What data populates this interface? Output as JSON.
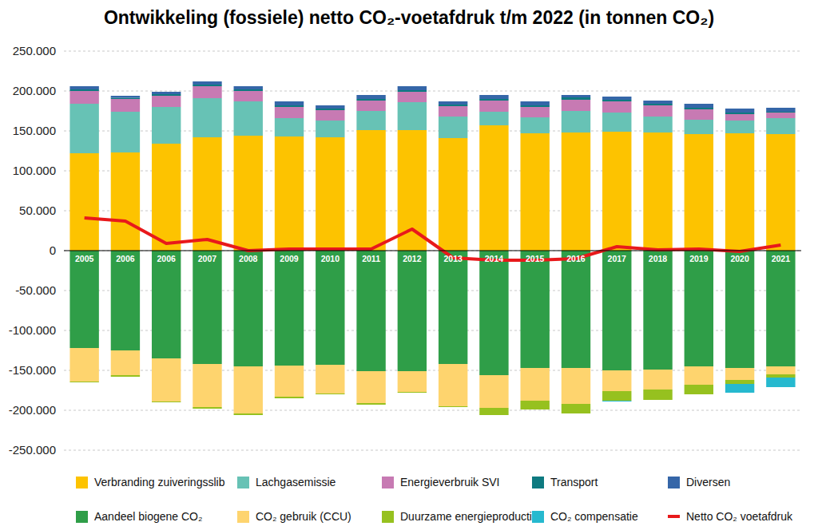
{
  "chart_data": {
    "type": "bar",
    "title": "Ontwikkeling (fossiele) netto CO₂-voetafdruk t/m 2022 (in tonnen CO₂)",
    "categories": [
      "2005",
      "2006",
      "2006",
      "2007",
      "2008",
      "2009",
      "2010",
      "2011",
      "2012",
      "2013",
      "2014",
      "2015",
      "2016",
      "2017",
      "2018",
      "2019",
      "2020",
      "2021"
    ],
    "stacked": true,
    "grid": true,
    "legend": "bottom",
    "ylim": [
      -250000,
      250000
    ],
    "yticks": [
      {
        "value": -250000,
        "label": "-250.000"
      },
      {
        "value": -200000,
        "label": "-200.000"
      },
      {
        "value": -150000,
        "label": "-150.000"
      },
      {
        "value": -100000,
        "label": "-100.000"
      },
      {
        "value": -50000,
        "label": "-50.000"
      },
      0,
      {
        "value": 50000,
        "label": "50.000"
      },
      {
        "value": 100000,
        "label": "100.000"
      },
      {
        "value": 150000,
        "label": "150.000"
      },
      {
        "value": 200000,
        "label": "200.000"
      },
      {
        "value": 250000,
        "label": "250.000"
      }
    ],
    "series": [
      {
        "name": "Verbranding zuiveringsslib",
        "color": "#fdc300",
        "values": [
          122000,
          123000,
          134000,
          142000,
          144000,
          143000,
          142000,
          151000,
          151000,
          141000,
          157000,
          147000,
          148000,
          149000,
          148000,
          146000,
          147000,
          146000
        ]
      },
      {
        "name": "Lachgasemissie",
        "color": "#67c2b5",
        "values": [
          62000,
          51000,
          46000,
          49000,
          43000,
          23000,
          21000,
          24000,
          35000,
          27000,
          17000,
          20000,
          27000,
          24000,
          20000,
          18000,
          16000,
          20000
        ]
      },
      {
        "name": "Energieverbruik SVI",
        "color": "#c77ab3",
        "values": [
          16000,
          16000,
          14000,
          15000,
          13000,
          14000,
          13000,
          13000,
          13000,
          13000,
          14000,
          13000,
          14000,
          14000,
          14000,
          13000,
          8000,
          7000
        ]
      },
      {
        "name": "Transport",
        "color": "#0e7a80",
        "values": [
          2000,
          1500,
          2000,
          2000,
          2000,
          2000,
          2000,
          2000,
          2000,
          2000,
          2000,
          2000,
          3000,
          2000,
          2000,
          2000,
          2000,
          1000
        ]
      },
      {
        "name": "Diversen",
        "color": "#3566a8",
        "values": [
          4000,
          2500,
          3000,
          4000,
          4000,
          5000,
          4000,
          5000,
          5000,
          4000,
          5000,
          5000,
          3000,
          4000,
          4000,
          5000,
          5000,
          5000
        ]
      },
      {
        "name": "Aandeel biogene CO₂",
        "color": "#2f9e48",
        "values": [
          -122000,
          -125000,
          -135000,
          -142000,
          -145000,
          -144000,
          -143000,
          -151000,
          -151000,
          -142000,
          -156000,
          -147000,
          -147000,
          -150000,
          -149000,
          -145000,
          -147000,
          -145000
        ]
      },
      {
        "name": "CO₂ gebruik (CCU)",
        "color": "#fed46e",
        "values": [
          -42000,
          -31000,
          -54000,
          -54000,
          -59000,
          -39000,
          -36000,
          -40000,
          -26000,
          -53000,
          -41000,
          -41000,
          -45000,
          -26000,
          -25000,
          -23000,
          -15000,
          -10000
        ]
      },
      {
        "name": "Duurzame energieproductie",
        "color": "#96c11f",
        "values": [
          -1000,
          -2000,
          -1000,
          -2000,
          -2000,
          -2000,
          -1000,
          -2000,
          -1000,
          -1000,
          -9000,
          -11000,
          -12000,
          -12000,
          -13000,
          -12000,
          -5000,
          -4000
        ]
      },
      {
        "name": "CO₂ compensatie",
        "color": "#26b9cf",
        "values": [
          0,
          0,
          0,
          0,
          0,
          0,
          0,
          0,
          0,
          0,
          0,
          0,
          0,
          -1000,
          0,
          0,
          -11000,
          -12000
        ]
      },
      {
        "name": "Netto CO₂ voetafdruk",
        "color": "#e8191b",
        "type": "line",
        "values": [
          41000,
          37000,
          9000,
          14000,
          0,
          2000,
          2000,
          2000,
          27000,
          -9000,
          -12000,
          -12000,
          -10000,
          5000,
          1000,
          2000,
          -1000,
          7000
        ]
      }
    ]
  }
}
